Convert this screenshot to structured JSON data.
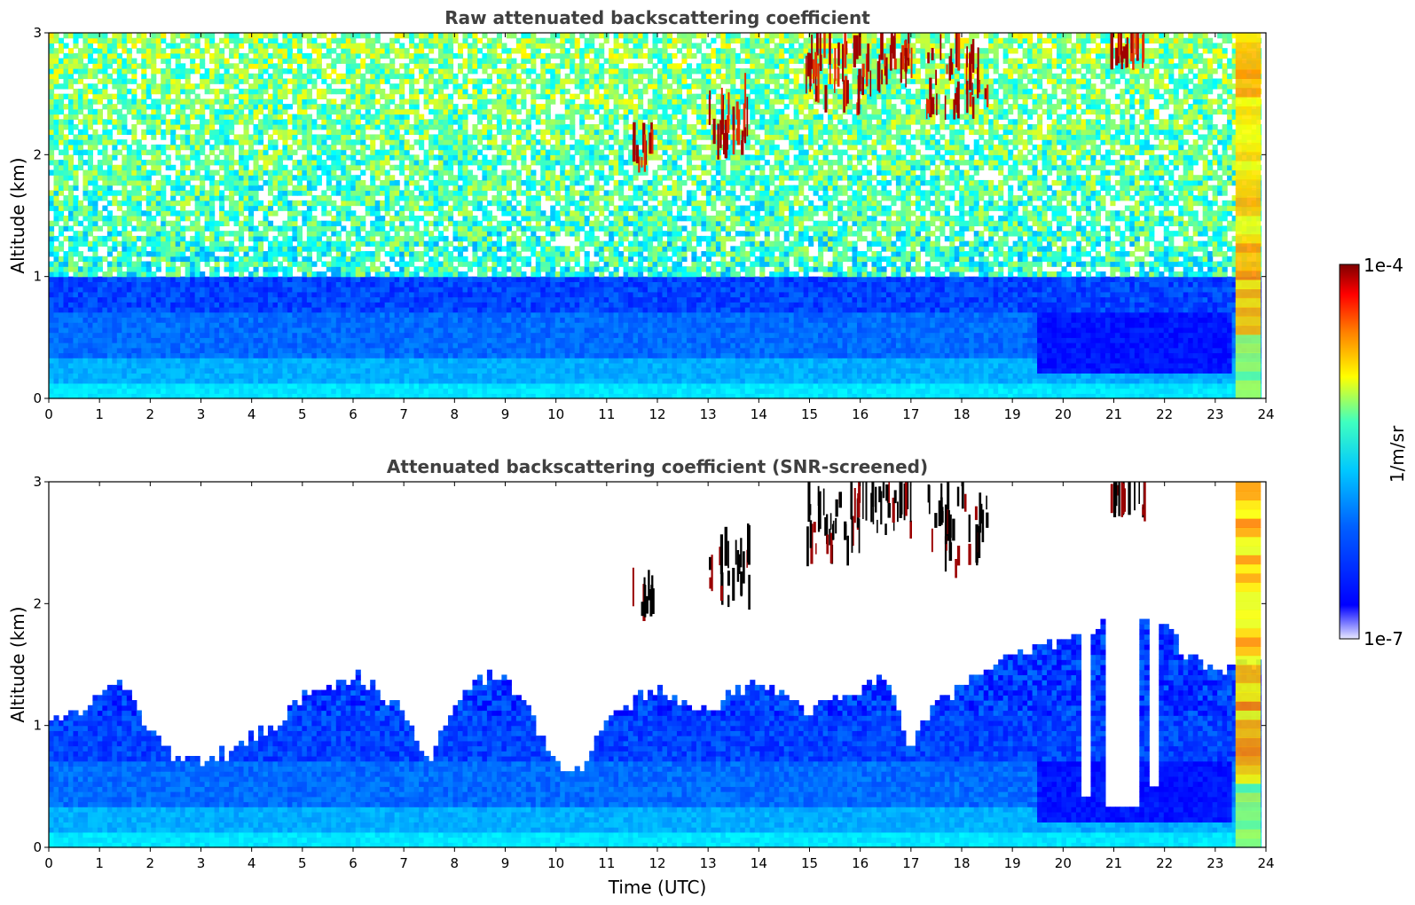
{
  "chart_data": [
    {
      "type": "heatmap",
      "title": "Raw attenuated backscattering coefficient",
      "xlabel": "",
      "ylabel": "Altitude (km)",
      "xlim": [
        0,
        24
      ],
      "ylim": [
        0,
        3
      ],
      "x_ticks": [
        "0",
        "1",
        "2",
        "3",
        "4",
        "5",
        "6",
        "7",
        "8",
        "9",
        "10",
        "11",
        "12",
        "13",
        "14",
        "15",
        "16",
        "17",
        "18",
        "19",
        "20",
        "21",
        "22",
        "23",
        "24"
      ],
      "y_ticks": [
        "0",
        "1",
        "2",
        "3"
      ],
      "colorscale": "jet, log scale",
      "features": {
        "boundary_layer_top_km": 0.6,
        "noisy_background_above_km": 1.0,
        "cloud_elements": [
          {
            "time_start": 11.5,
            "time_end": 11.9,
            "alt_bottom": 1.85,
            "alt_top": 2.2
          },
          {
            "time_start": 13.0,
            "time_end": 13.8,
            "alt_bottom": 1.95,
            "alt_top": 2.5
          },
          {
            "time_start": 14.9,
            "time_end": 16.2,
            "alt_bottom": 2.3,
            "alt_top": 3.0
          },
          {
            "time_start": 16.2,
            "time_end": 17.0,
            "alt_bottom": 2.5,
            "alt_top": 3.0
          },
          {
            "time_start": 17.3,
            "time_end": 18.5,
            "alt_bottom": 2.2,
            "alt_top": 3.0
          },
          {
            "time_start": 20.9,
            "time_end": 21.6,
            "alt_bottom": 2.7,
            "alt_top": 3.0
          }
        ],
        "precipitation_column": {
          "time_start": 23.4,
          "time_end": 23.9,
          "alt_bottom": 0.0,
          "alt_top": 3.0
        }
      }
    },
    {
      "type": "heatmap",
      "title": "Attenuated backscattering coefficient (SNR-screened)",
      "xlabel": "Time (UTC)",
      "ylabel": "Altitude (km)",
      "xlim": [
        0,
        24
      ],
      "ylim": [
        0,
        3
      ],
      "x_ticks": [
        "0",
        "1",
        "2",
        "3",
        "4",
        "5",
        "6",
        "7",
        "8",
        "9",
        "10",
        "11",
        "12",
        "13",
        "14",
        "15",
        "16",
        "17",
        "18",
        "19",
        "20",
        "21",
        "22",
        "23",
        "24"
      ],
      "y_ticks": [
        "0",
        "1",
        "2",
        "3"
      ],
      "colorscale": "jet, log scale",
      "screened_top_km": [
        [
          0,
          1.05
        ],
        [
          0.5,
          1.1
        ],
        [
          1,
          1.3
        ],
        [
          1.5,
          1.35
        ],
        [
          2,
          0.95
        ],
        [
          2.5,
          0.72
        ],
        [
          3,
          0.7
        ],
        [
          3.5,
          0.78
        ],
        [
          4,
          0.9
        ],
        [
          4.5,
          1.0
        ],
        [
          5,
          1.25
        ],
        [
          5.5,
          1.3
        ],
        [
          6,
          1.4
        ],
        [
          6.5,
          1.3
        ],
        [
          7,
          1.1
        ],
        [
          7.5,
          0.65
        ],
        [
          8,
          1.2
        ],
        [
          8.5,
          1.4
        ],
        [
          9,
          1.4
        ],
        [
          9.5,
          1.1
        ],
        [
          10,
          0.7
        ],
        [
          10.5,
          0.6
        ],
        [
          11,
          1.1
        ],
        [
          11.5,
          1.2
        ],
        [
          12,
          1.3
        ],
        [
          12.5,
          1.2
        ],
        [
          13,
          1.1
        ],
        [
          13.5,
          1.3
        ],
        [
          14,
          1.35
        ],
        [
          14.5,
          1.25
        ],
        [
          15,
          1.1
        ],
        [
          15.5,
          1.25
        ],
        [
          16,
          1.3
        ],
        [
          16.5,
          1.4
        ],
        [
          17,
          0.8
        ],
        [
          17.5,
          1.2
        ],
        [
          18,
          1.3
        ],
        [
          18.5,
          1.5
        ],
        [
          19,
          1.55
        ],
        [
          19.5,
          1.65
        ],
        [
          20,
          1.7
        ],
        [
          20.5,
          1.75
        ],
        [
          21,
          1.9
        ],
        [
          21.5,
          1.9
        ],
        [
          22,
          1.8
        ],
        [
          22.5,
          1.55
        ],
        [
          23,
          1.45
        ],
        [
          23.5,
          1.5
        ],
        [
          23.9,
          1.5
        ]
      ],
      "clear_gaps": [
        {
          "time_start": 20.4,
          "time_end": 20.55,
          "alt_bottom": 0.4
        },
        {
          "time_start": 20.85,
          "time_end": 21.5,
          "alt_bottom": 0.35
        },
        {
          "time_start": 21.65,
          "time_end": 21.9,
          "alt_bottom": 0.5
        }
      ],
      "features": {
        "cloud_elements": [
          {
            "time_start": 11.5,
            "time_end": 11.9,
            "alt_bottom": 1.85,
            "alt_top": 2.2
          },
          {
            "time_start": 13.0,
            "time_end": 13.8,
            "alt_bottom": 1.95,
            "alt_top": 2.5
          },
          {
            "time_start": 14.9,
            "time_end": 16.2,
            "alt_bottom": 2.3,
            "alt_top": 3.0
          },
          {
            "time_start": 16.2,
            "time_end": 17.0,
            "alt_bottom": 2.5,
            "alt_top": 3.0
          },
          {
            "time_start": 17.3,
            "time_end": 18.5,
            "alt_bottom": 2.2,
            "alt_top": 3.0
          },
          {
            "time_start": 20.9,
            "time_end": 21.6,
            "alt_bottom": 2.7,
            "alt_top": 3.0
          }
        ],
        "precipitation_column": {
          "time_start": 23.4,
          "time_end": 23.9,
          "alt_bottom": 0.0,
          "alt_top": 3.0
        }
      }
    }
  ],
  "colorbar": {
    "label": "1/m/sr",
    "max_label": "1e-4",
    "min_label": "1e-7",
    "scale": "log"
  },
  "colors": {
    "jet": [
      "#00007f",
      "#0000ff",
      "#007fff",
      "#00ffff",
      "#7fff7f",
      "#ffff00",
      "#ff7f00",
      "#ff0000",
      "#7f0000"
    ],
    "axis": "#000000",
    "title": "#404040"
  }
}
